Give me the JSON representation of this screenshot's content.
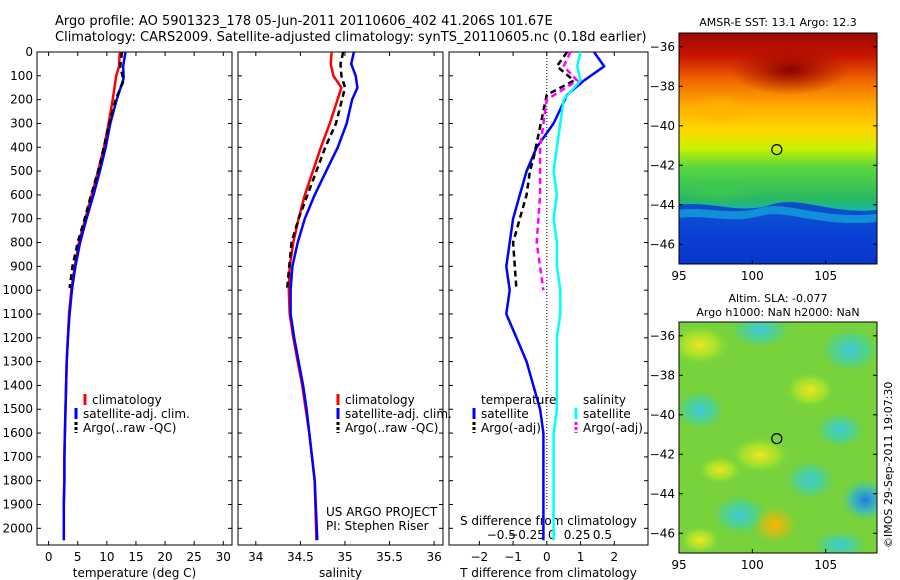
{
  "figure": {
    "title_line1": "Argo profile: AO 5901323_178 05-Jun-2011 20110606_402 41.206S 101.67E",
    "title_line2": "Climatology: CARS2009. Satellite-adjusted climatology: synTS_20110605.nc (0.18d earlier)",
    "project_line1": "US ARGO PROJECT",
    "project_line2": "PI: Stephen Riser",
    "copyright": "©IMOS 29-Sep-2011 19:07:30",
    "colors": {
      "climatology": "#ff0000",
      "satellite": "#0000ff",
      "argo": "#000000",
      "sat_salinity": "#00ffff",
      "argo_salinity": "#ff00ff"
    }
  },
  "chart_data": [
    {
      "type": "line",
      "panel": "temperature",
      "xlabel": "temperature (deg C)",
      "xlim": [
        -2,
        31.5
      ],
      "xticks": [
        0,
        5,
        10,
        15,
        20,
        25,
        30
      ],
      "ylim": [
        2070,
        0
      ],
      "yticks": [
        0,
        100,
        200,
        300,
        400,
        500,
        600,
        700,
        800,
        900,
        1000,
        1100,
        1200,
        1300,
        1400,
        1500,
        1600,
        1700,
        1800,
        1900,
        2000
      ],
      "legend": [
        "climatology",
        "satellite-adj. clim.",
        "Argo(..raw -QC)"
      ],
      "legend_position": "lower-center",
      "series": [
        {
          "name": "climatology",
          "color": "#ff0000",
          "style": "solid",
          "x": [
            12.2,
            12.1,
            11.6,
            11.0,
            10.3,
            9.5,
            8.5,
            7.4,
            6.3,
            5.2,
            4.5,
            3.9,
            3.5,
            3.3,
            3.1,
            3.0,
            2.9,
            2.8,
            2.7,
            2.7,
            2.6,
            2.6
          ],
          "y": [
            0,
            60,
            100,
            200,
            300,
            400,
            500,
            600,
            700,
            800,
            900,
            1000,
            1100,
            1200,
            1300,
            1400,
            1500,
            1600,
            1700,
            1800,
            1900,
            2050
          ]
        },
        {
          "name": "satellite-adj. clim.",
          "color": "#0000ff",
          "style": "solid",
          "x": [
            13.2,
            12.8,
            12.9,
            11.7,
            10.6,
            9.8,
            8.8,
            7.7,
            6.5,
            5.4,
            4.6,
            4.0,
            3.6,
            3.3,
            3.1,
            3.0,
            2.9,
            2.8,
            2.7,
            2.7,
            2.6,
            2.6
          ],
          "y": [
            0,
            60,
            110,
            200,
            300,
            400,
            500,
            600,
            700,
            800,
            900,
            1000,
            1100,
            1200,
            1300,
            1400,
            1500,
            1600,
            1700,
            1800,
            1900,
            2050
          ]
        },
        {
          "name": "Argo(..raw -QC)",
          "color": "#000000",
          "style": "dashed",
          "x": [
            12.6,
            12.3,
            12.9,
            11.5,
            10.4,
            9.5,
            8.5,
            7.3,
            6.2,
            5.0,
            4.1,
            3.6
          ],
          "y": [
            0,
            60,
            120,
            200,
            300,
            400,
            500,
            600,
            700,
            800,
            900,
            990
          ]
        }
      ]
    },
    {
      "type": "line",
      "panel": "salinity",
      "xlabel": "salinity",
      "xlim": [
        33.8,
        36.1
      ],
      "xticks": [
        34,
        34.5,
        35,
        35.5,
        36
      ],
      "ylim": [
        2070,
        0
      ],
      "legend": [
        "climatology",
        "satellite-adj. clim.",
        "Argo(..raw -QC)"
      ],
      "legend_position": "lower-right",
      "series": [
        {
          "name": "climatology",
          "color": "#ff0000",
          "style": "solid",
          "x": [
            34.85,
            34.84,
            34.87,
            34.96,
            34.83,
            34.73,
            34.64,
            34.55,
            34.48,
            34.42,
            34.38,
            34.37,
            34.38,
            34.42,
            34.47,
            34.52,
            34.56,
            34.6,
            34.63,
            34.66,
            34.68
          ],
          "y": [
            0,
            50,
            100,
            150,
            300,
            400,
            500,
            600,
            700,
            800,
            900,
            1000,
            1100,
            1200,
            1300,
            1400,
            1500,
            1600,
            1700,
            1800,
            2050
          ]
        },
        {
          "name": "satellite-adj. clim.",
          "color": "#0000ff",
          "style": "solid",
          "x": [
            35.1,
            35.07,
            35.12,
            35.14,
            35.08,
            35.02,
            34.92,
            34.79,
            34.66,
            34.55,
            34.47,
            34.41,
            34.39,
            34.39,
            34.43,
            34.48,
            34.53,
            34.57,
            34.6,
            34.63,
            34.66,
            34.69
          ],
          "y": [
            0,
            50,
            100,
            150,
            200,
            300,
            400,
            500,
            600,
            700,
            800,
            900,
            1000,
            1100,
            1200,
            1300,
            1400,
            1500,
            1600,
            1700,
            1800,
            2050
          ]
        },
        {
          "name": "Argo(..raw -QC)",
          "color": "#000000",
          "style": "dashed",
          "x": [
            34.98,
            34.95,
            34.96,
            35.0,
            34.9,
            34.78,
            34.68,
            34.58,
            34.48,
            34.4,
            34.35
          ],
          "y": [
            0,
            50,
            100,
            150,
            300,
            400,
            500,
            600,
            700,
            800,
            1000
          ]
        }
      ]
    },
    {
      "type": "line",
      "panel": "difference",
      "xlabel": "T difference from climatology",
      "xlabel2": "S difference from climatology",
      "xlim": [
        -2.9,
        3.0
      ],
      "xticks": [
        -2,
        -1,
        0,
        1,
        2
      ],
      "xticks2": [
        -0.5,
        -0.25,
        0,
        0.25,
        0.5
      ],
      "ylim": [
        2070,
        0
      ],
      "legend": [
        "temperature",
        "satellite",
        "Argo(-adj)",
        "salinity",
        "satellite",
        "Argo(-adj)"
      ],
      "legend_position": "lower-center",
      "series": [
        {
          "name": "satellite",
          "group": "temperature",
          "color": "#0000ff",
          "style": "solid",
          "x": [
            1.4,
            1.7,
            1.1,
            0.6,
            0.2,
            -0.3,
            -0.6,
            -0.8,
            -1.0,
            -1.1,
            -1.2,
            -1.1,
            -1.2,
            -0.9,
            -0.6,
            -0.4,
            -0.2,
            -0.1,
            -0.1,
            -0.1,
            -0.1
          ],
          "y": [
            0,
            60,
            120,
            180,
            300,
            400,
            500,
            600,
            700,
            800,
            900,
            1000,
            1100,
            1200,
            1300,
            1400,
            1500,
            1600,
            1700,
            1800,
            2050
          ]
        },
        {
          "name": "Argo(-adj)",
          "group": "temperature",
          "color": "#000000",
          "style": "dashed",
          "x": [
            0.6,
            0.3,
            0.8,
            0.0,
            -0.4,
            -0.5,
            -0.6,
            -0.8,
            -1.0,
            -0.9
          ],
          "y": [
            0,
            60,
            120,
            180,
            450,
            500,
            600,
            700,
            800,
            1000
          ]
        },
        {
          "name": "satellite",
          "group": "salinity",
          "color": "#00ffff",
          "style": "solid",
          "x": [
            1.0,
            0.9,
            1.0,
            0.5,
            0.4,
            0.3,
            0.2,
            0.3,
            0.2,
            0.3,
            0.3,
            0.4,
            0.4,
            0.3,
            0.3,
            0.3,
            0.3,
            0.2,
            0.2,
            0.2,
            0.2
          ],
          "y": [
            0,
            60,
            120,
            200,
            300,
            400,
            500,
            600,
            700,
            800,
            900,
            1000,
            1100,
            1200,
            1300,
            1400,
            1500,
            1600,
            1700,
            1800,
            2050
          ]
        },
        {
          "name": "Argo(-adj)",
          "group": "salinity",
          "color": "#ff00ff",
          "style": "dashed",
          "x": [
            0.7,
            0.5,
            0.9,
            0.0,
            -0.2,
            -0.2,
            -0.3,
            -0.1
          ],
          "y": [
            0,
            60,
            120,
            200,
            400,
            600,
            800,
            1000
          ]
        }
      ]
    },
    {
      "type": "heatmap",
      "panel": "sst-map",
      "title": "AMSR-E SST: 13.1  Argo: 12.3",
      "xlim": [
        95,
        108.5
      ],
      "xticks": [
        95,
        100,
        105
      ],
      "ylim": [
        -47,
        -35.3
      ],
      "yticks": [
        -36,
        -38,
        -40,
        -42,
        -44,
        -46
      ],
      "marker": {
        "lon": 101.67,
        "lat": -41.206
      }
    },
    {
      "type": "heatmap",
      "panel": "sla-map",
      "title": "Altim. SLA: -0.077",
      "subtitle": "Argo h1000: NaN h2000: NaN",
      "xlim": [
        95,
        108.5
      ],
      "xticks": [
        95,
        100,
        105
      ],
      "ylim": [
        -47,
        -35.3
      ],
      "yticks": [
        -36,
        -38,
        -40,
        -42,
        -44,
        -46
      ],
      "marker": {
        "lon": 101.67,
        "lat": -41.206
      }
    }
  ]
}
